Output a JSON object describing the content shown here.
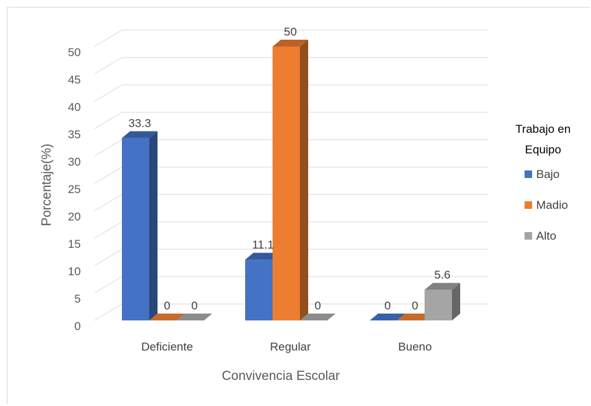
{
  "chart_data": {
    "type": "bar",
    "categories": [
      "Deficiente",
      "Regular",
      "Bueno"
    ],
    "series": [
      {
        "name": "Bajo",
        "values": [
          33.3,
          11.1,
          0
        ],
        "labels": [
          "33.3",
          "11.1",
          "0"
        ],
        "color": "#4472c4"
      },
      {
        "name": "Madio",
        "values": [
          0,
          50,
          0
        ],
        "labels": [
          "0",
          "50",
          "0"
        ],
        "color": "#ed7d31"
      },
      {
        "name": "Alto",
        "values": [
          0,
          0,
          5.6
        ],
        "labels": [
          "0",
          "0",
          "5.6"
        ],
        "color": "#a5a5a5"
      }
    ],
    "xlabel": "Convivencia Escolar",
    "ylabel": "Porcentaje(%)",
    "ylim": [
      0,
      50
    ],
    "yticks": [
      "0",
      "5",
      "10",
      "15",
      "20",
      "25",
      "30",
      "35",
      "40",
      "45",
      "50"
    ],
    "legend": {
      "title_line1": "Trabajo en",
      "title_line2": "Equipo",
      "position": "right"
    },
    "grid": true,
    "style": "3d-column"
  }
}
